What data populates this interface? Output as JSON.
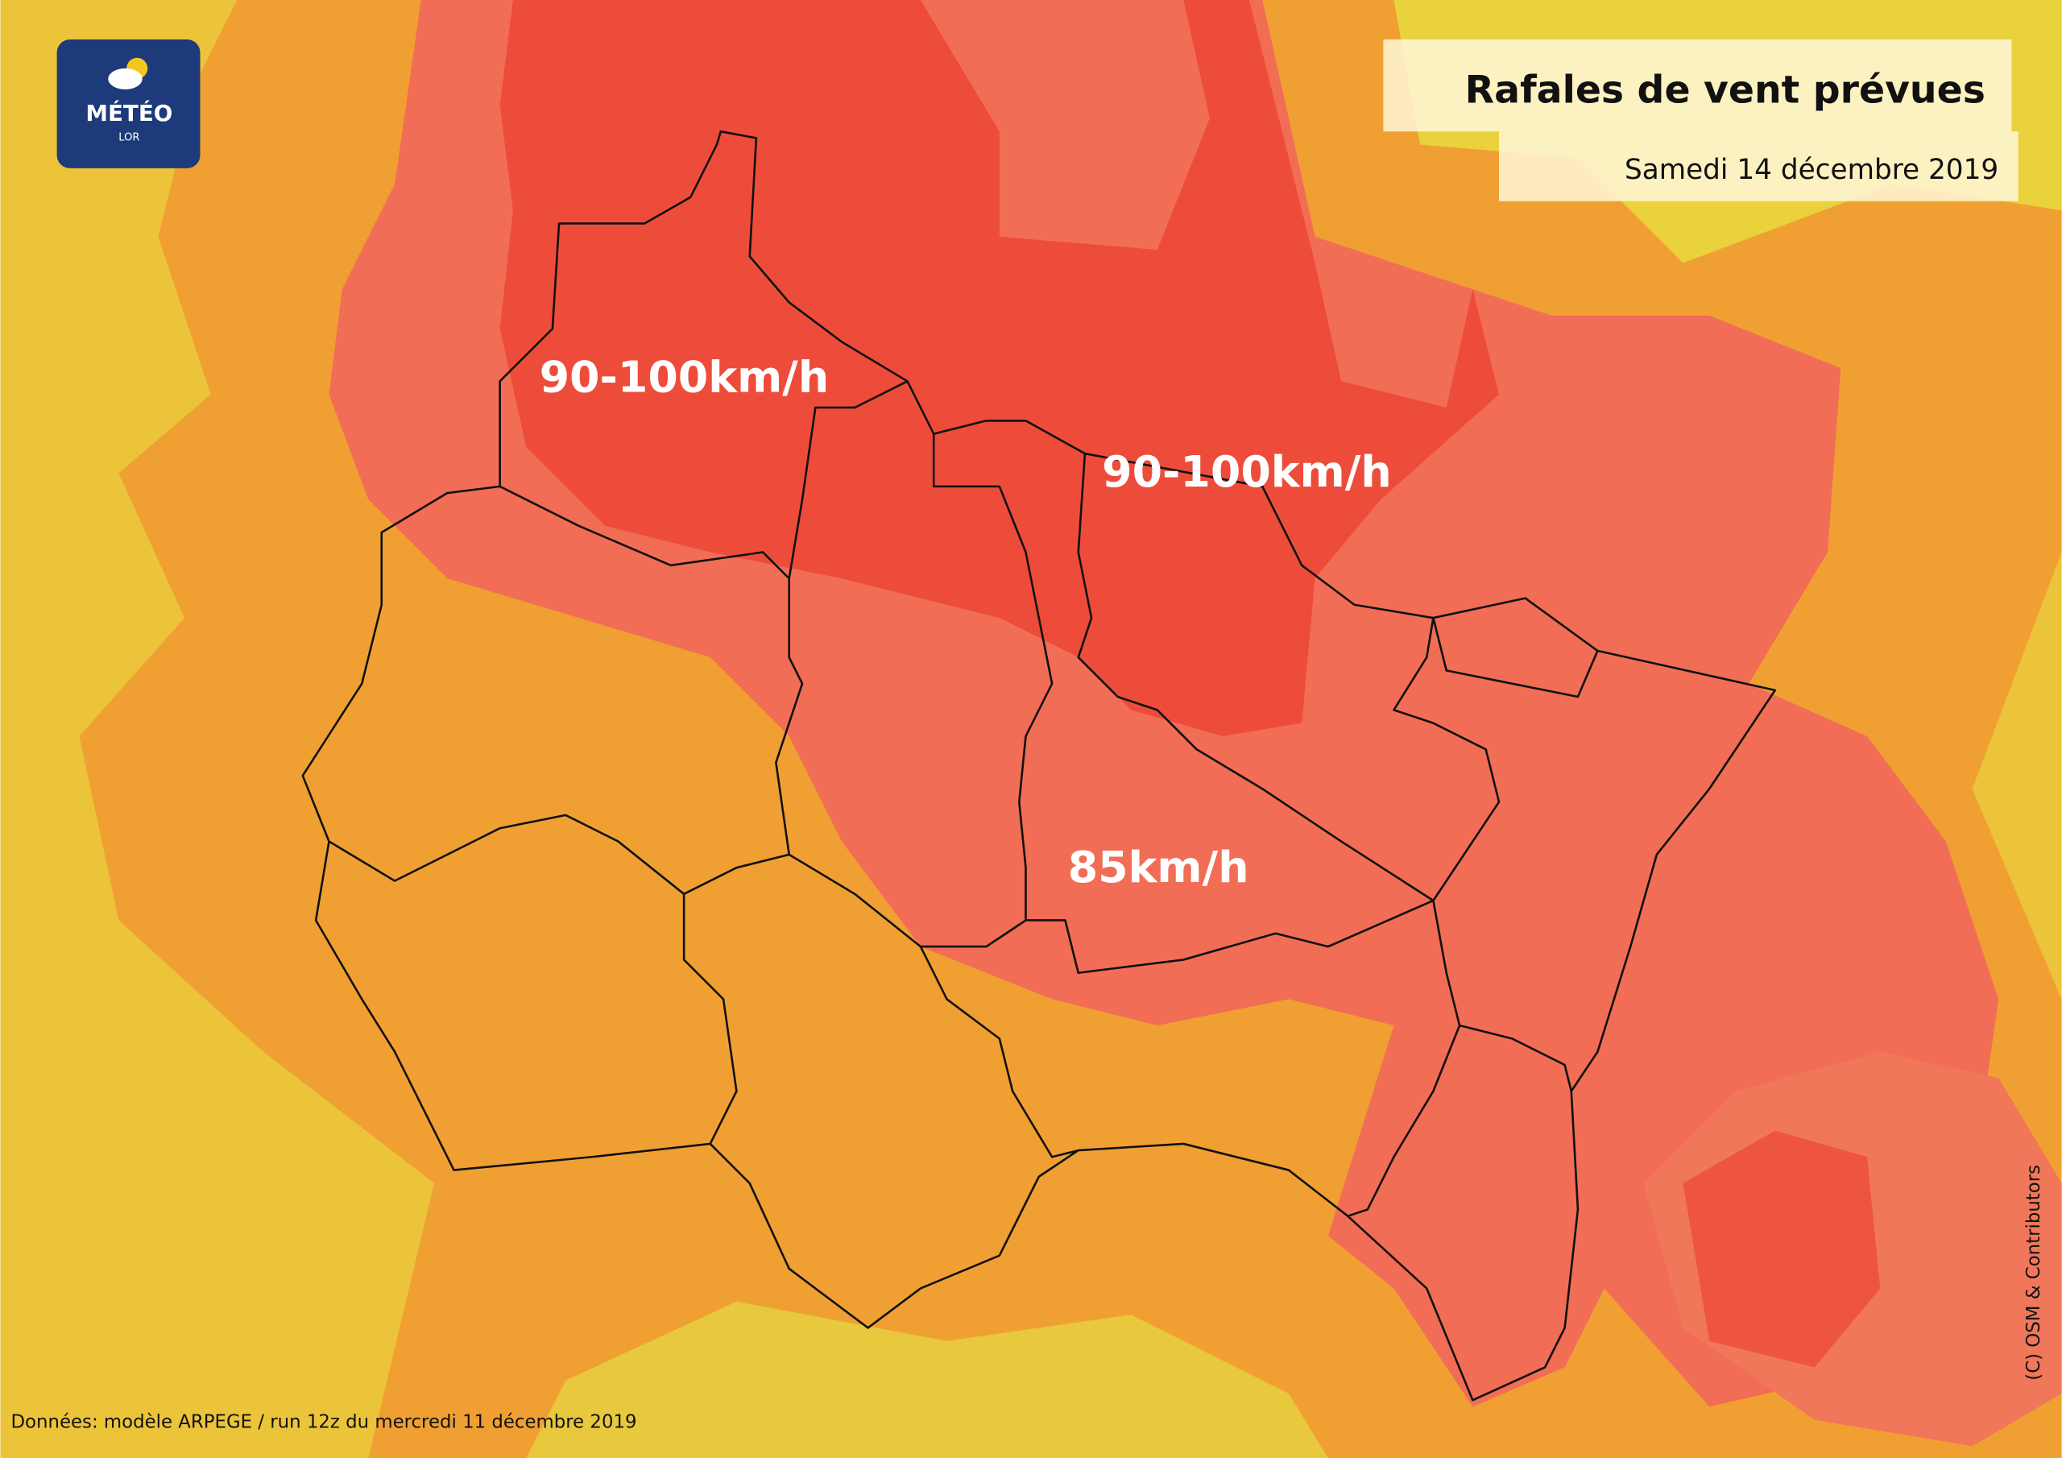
{
  "logo": {
    "name": "MÉTÉO",
    "sub": "LOR"
  },
  "header": {
    "title": "Rafales de vent prévues",
    "subtitle": "Samedi 14 décembre 2019"
  },
  "labels": [
    "90-100km/h",
    "90-100km/h",
    "85km/h"
  ],
  "footer": {
    "source": "Données: modèle ARPEGE / run 12z du mercredi 11 décembre 2019",
    "credit": "(C) OSM & Contributors"
  }
}
